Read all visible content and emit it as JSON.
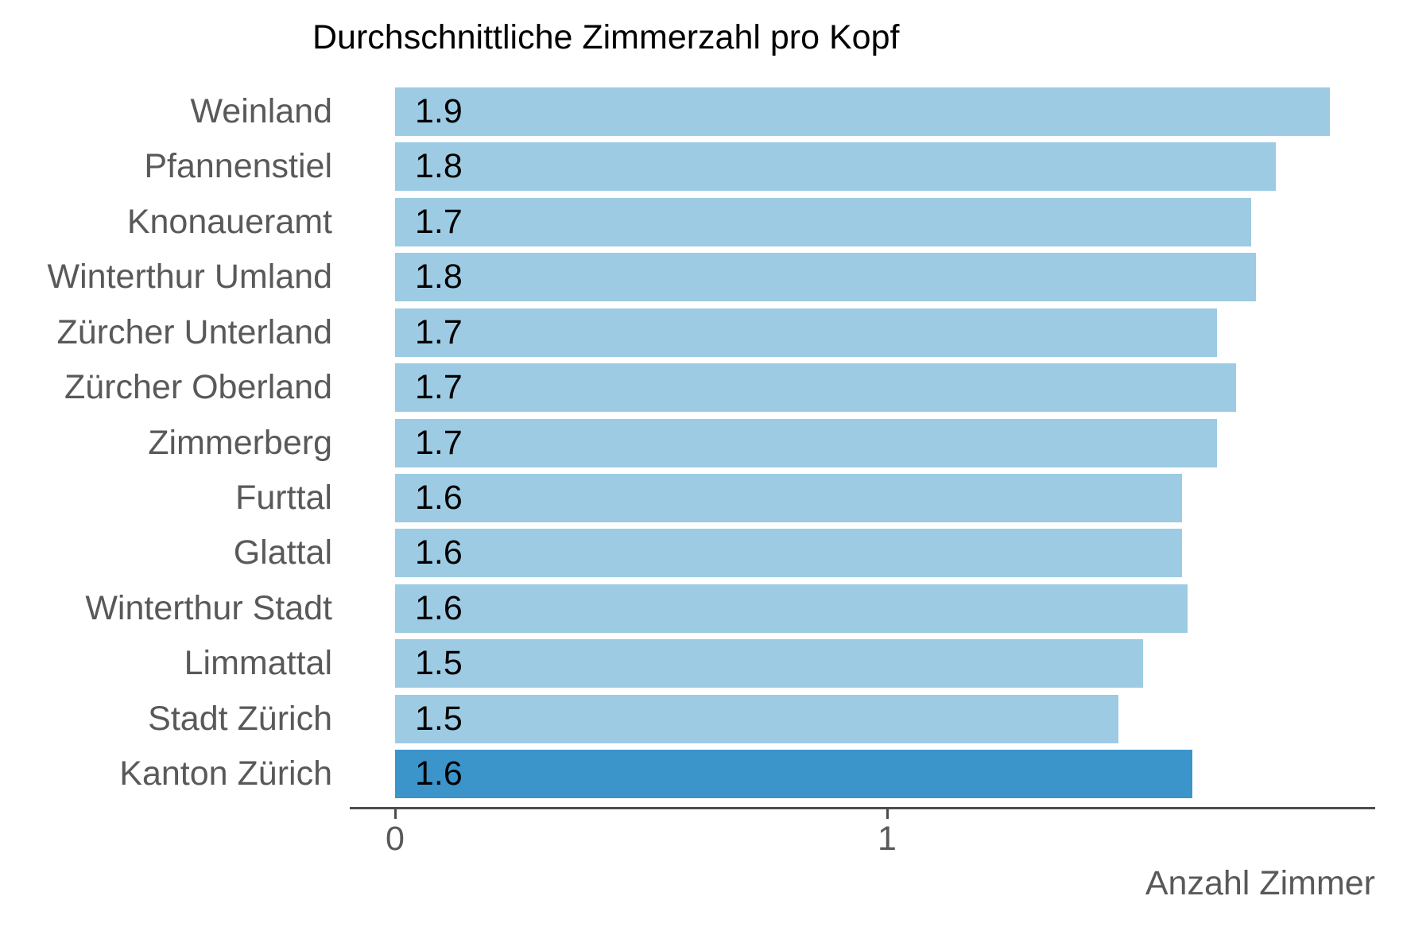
{
  "chart_data": {
    "type": "bar",
    "orientation": "horizontal",
    "title": "Durchschnittliche Zimmerzahl pro Kopf",
    "xlabel": "Anzahl Zimmer",
    "ylabel": "",
    "xlim": [
      0,
      2
    ],
    "xticks": [
      0,
      1
    ],
    "xtick_labels": [
      "0",
      "1"
    ],
    "grid": false,
    "legend": false,
    "categories": [
      "Weinland",
      "Pfannenstiel",
      "Knonaueramt",
      "Winterthur Umland",
      "Zürcher Unterland",
      "Zürcher Oberland",
      "Zimmerberg",
      "Furttal",
      "Glattal",
      "Winterthur Stadt",
      "Limmattal",
      "Stadt Zürich",
      "Kanton Zürich"
    ],
    "values": [
      1.9,
      1.79,
      1.74,
      1.75,
      1.67,
      1.71,
      1.67,
      1.6,
      1.6,
      1.61,
      1.52,
      1.47,
      1.62
    ],
    "value_labels": [
      "1.9",
      "1.8",
      "1.7",
      "1.8",
      "1.7",
      "1.7",
      "1.7",
      "1.6",
      "1.6",
      "1.6",
      "1.5",
      "1.5",
      "1.6"
    ],
    "highlight_category": "Kanton Zürich",
    "highlight_index": 12,
    "colors": {
      "bar": "#9dcbe3",
      "highlight_bar": "#3b95cb",
      "category_text": "#595959",
      "value_text": "#000000",
      "axis": "#4d4d4d",
      "title_text": "#000000"
    }
  }
}
